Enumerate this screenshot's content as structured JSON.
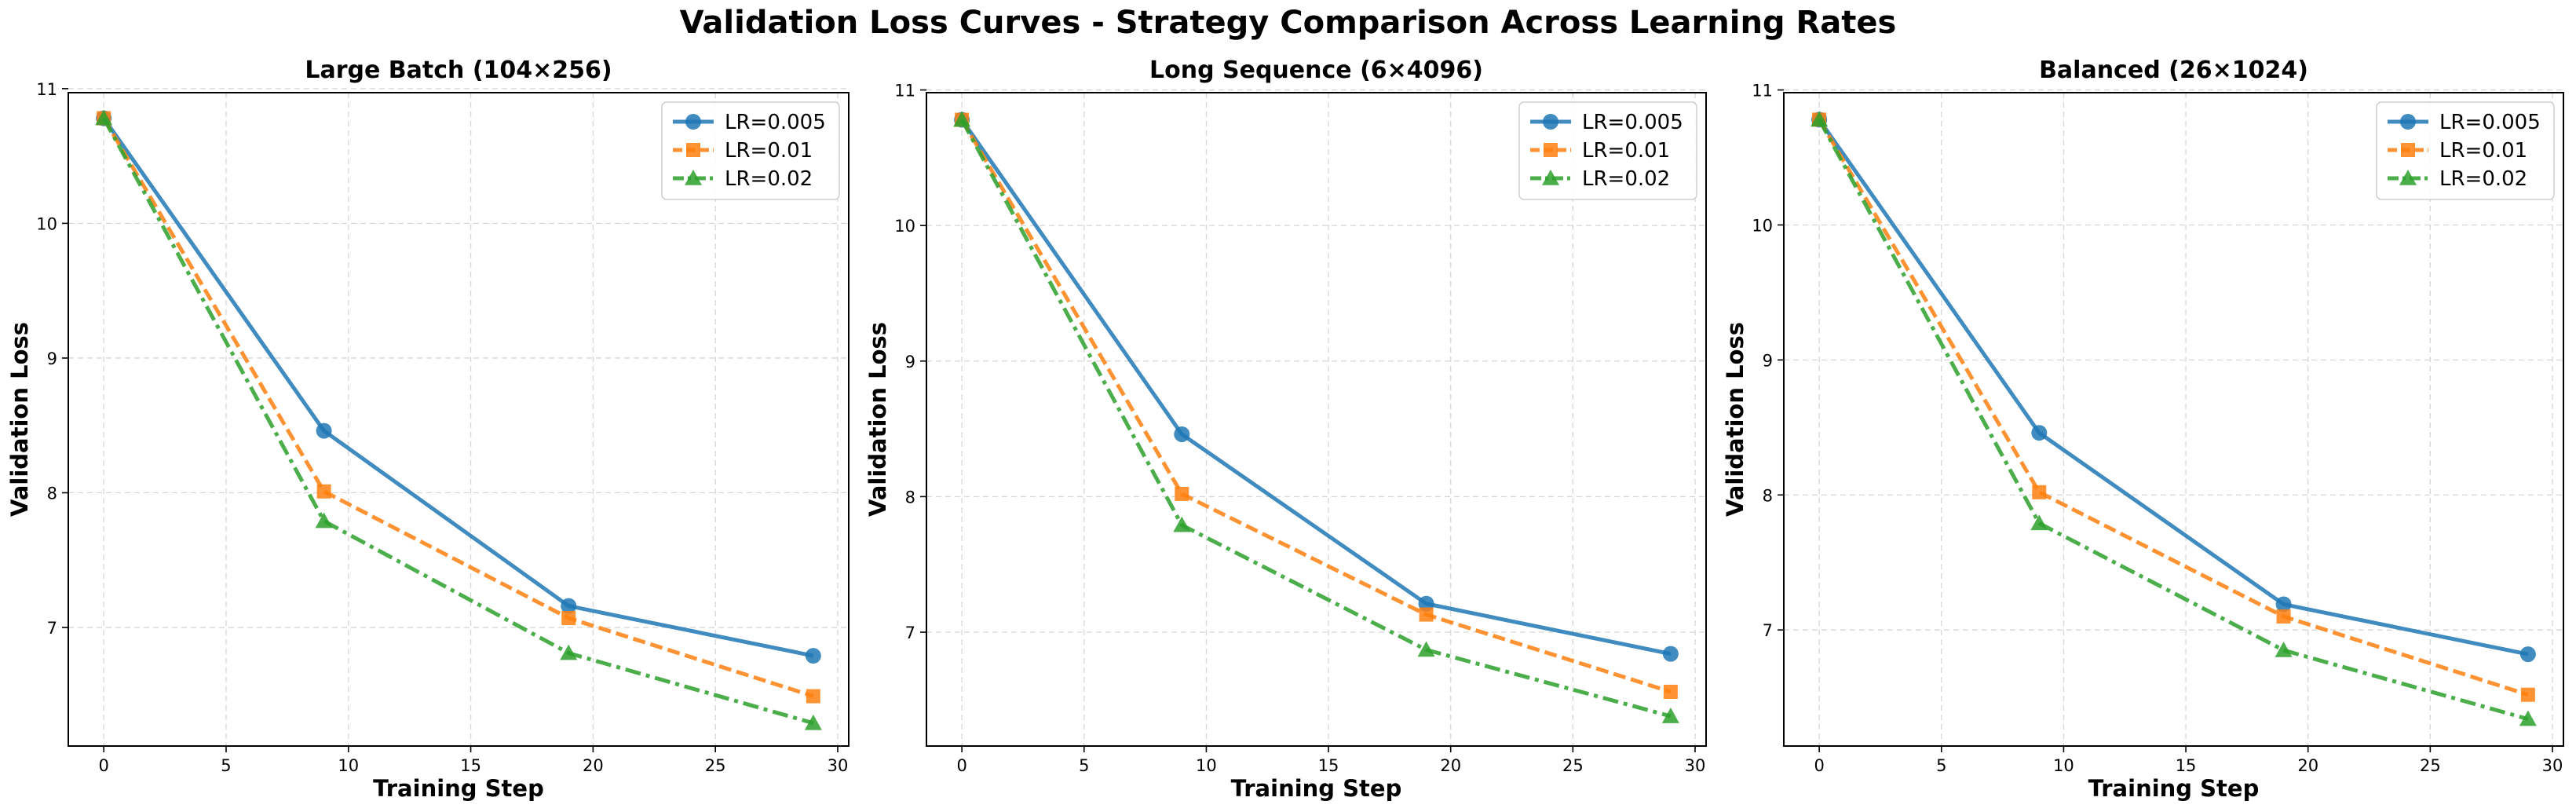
{
  "figure": {
    "title": "Validation Loss Curves - Strategy Comparison Across Learning Rates"
  },
  "chart_data": [
    {
      "type": "line",
      "title": "Large Batch (104×256)",
      "xlabel": "Training Step",
      "ylabel": "Validation Loss",
      "x": [
        0,
        9,
        19,
        29
      ],
      "xlim": [
        -1.45,
        30.45
      ],
      "ylim": [
        6.12,
        10.97
      ],
      "xticks": [
        0,
        5,
        10,
        15,
        20,
        25,
        30
      ],
      "yticks": [
        7,
        8,
        9,
        10,
        11
      ],
      "grid": true,
      "legend": "top-right",
      "series": [
        {
          "name": "LR=0.005",
          "values": [
            10.78,
            8.46,
            7.16,
            6.79
          ],
          "color": "#1f77b4",
          "marker": "circle",
          "dash": "solid"
        },
        {
          "name": "LR=0.01",
          "values": [
            10.78,
            8.01,
            7.07,
            6.49
          ],
          "color": "#ff7f0e",
          "marker": "square",
          "dash": "dashed"
        },
        {
          "name": "LR=0.02",
          "values": [
            10.78,
            7.79,
            6.81,
            6.29
          ],
          "color": "#2ca02c",
          "marker": "triangle",
          "dash": "dashdot"
        }
      ]
    },
    {
      "type": "line",
      "title": "Long Sequence (6×4096)",
      "xlabel": "Training Step",
      "ylabel": "Validation Loss",
      "x": [
        0,
        9,
        19,
        29
      ],
      "xlim": [
        -1.45,
        30.45
      ],
      "ylim": [
        6.16,
        10.98
      ],
      "xticks": [
        0,
        5,
        10,
        15,
        20,
        25,
        30
      ],
      "yticks": [
        7,
        8,
        9,
        10,
        11
      ],
      "grid": true,
      "legend": "top-right",
      "series": [
        {
          "name": "LR=0.005",
          "values": [
            10.78,
            8.46,
            7.21,
            6.84
          ],
          "color": "#1f77b4",
          "marker": "circle",
          "dash": "solid"
        },
        {
          "name": "LR=0.01",
          "values": [
            10.78,
            8.02,
            7.13,
            6.56
          ],
          "color": "#ff7f0e",
          "marker": "square",
          "dash": "dashed"
        },
        {
          "name": "LR=0.02",
          "values": [
            10.78,
            7.79,
            6.87,
            6.38
          ],
          "color": "#2ca02c",
          "marker": "triangle",
          "dash": "dashdot"
        }
      ]
    },
    {
      "type": "line",
      "title": "Balanced (26×1024)",
      "xlabel": "Training Step",
      "ylabel": "Validation Loss",
      "x": [
        0,
        9,
        19,
        29
      ],
      "xlim": [
        -1.45,
        30.45
      ],
      "ylim": [
        6.14,
        10.98
      ],
      "xticks": [
        0,
        5,
        10,
        15,
        20,
        25,
        30
      ],
      "yticks": [
        7,
        8,
        9,
        10,
        11
      ],
      "grid": true,
      "legend": "top-right",
      "series": [
        {
          "name": "LR=0.005",
          "values": [
            10.78,
            8.46,
            7.19,
            6.82
          ],
          "color": "#1f77b4",
          "marker": "circle",
          "dash": "solid"
        },
        {
          "name": "LR=0.01",
          "values": [
            10.78,
            8.02,
            7.1,
            6.52
          ],
          "color": "#ff7f0e",
          "marker": "square",
          "dash": "dashed"
        },
        {
          "name": "LR=0.02",
          "values": [
            10.78,
            7.79,
            6.85,
            6.34
          ],
          "color": "#2ca02c",
          "marker": "triangle",
          "dash": "dashdot"
        }
      ]
    }
  ]
}
